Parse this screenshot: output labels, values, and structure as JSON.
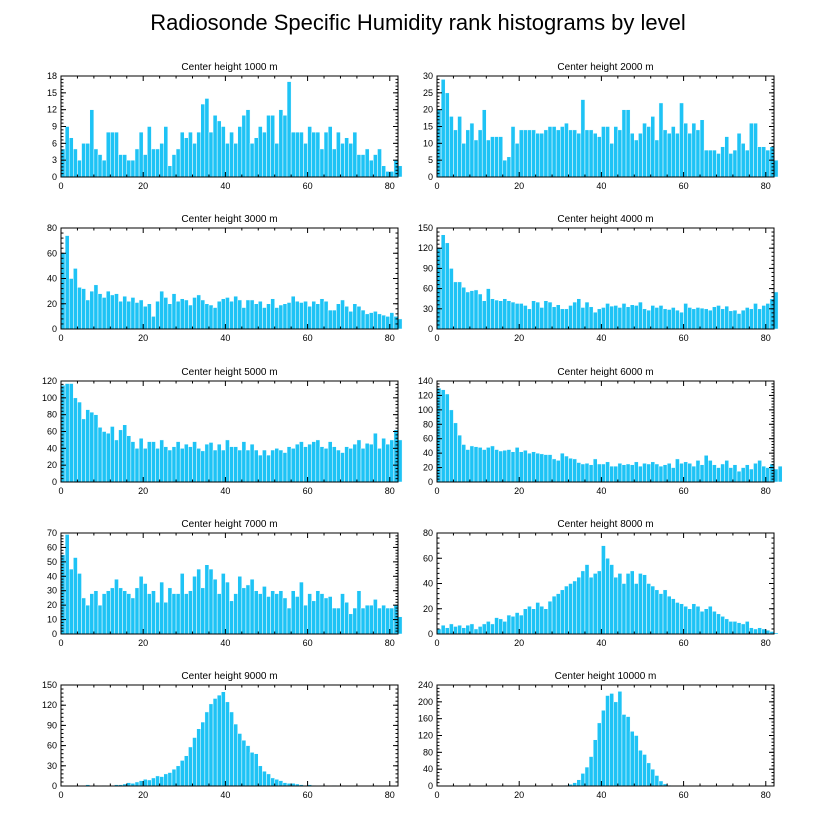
{
  "title": "Radiosonde Specific Humidity rank histograms by level",
  "colors": {
    "bar": "#1ec3f5",
    "axis": "#000000",
    "background": "#ffffff"
  },
  "chart_data": [
    {
      "type": "bar",
      "title": "Center height 1000 m",
      "xlim": [
        0,
        82
      ],
      "ylim": [
        0,
        18
      ],
      "xticks": [
        0,
        20,
        40,
        60,
        80
      ],
      "yticks": [
        0,
        3,
        6,
        9,
        12,
        15,
        18
      ],
      "values": [
        5,
        9,
        7,
        5,
        3,
        6,
        6,
        12,
        5,
        4,
        3,
        8,
        8,
        8,
        4,
        4,
        3,
        3,
        5,
        8,
        4,
        9,
        5,
        5,
        6,
        9,
        2,
        4,
        5,
        8,
        7,
        8,
        6,
        8,
        13,
        14,
        8,
        11,
        10,
        9,
        6,
        8,
        6,
        9,
        11,
        12,
        6,
        7,
        9,
        8,
        11,
        11,
        6,
        12,
        11,
        17,
        8,
        8,
        8,
        6,
        9,
        8,
        8,
        5,
        8,
        9,
        5,
        8,
        6,
        7,
        6,
        8,
        4,
        4,
        5,
        3,
        4,
        5,
        2,
        1,
        1,
        3,
        2
      ]
    },
    {
      "type": "bar",
      "title": "Center height 2000 m",
      "xlim": [
        0,
        82
      ],
      "ylim": [
        0,
        30
      ],
      "xticks": [
        0,
        20,
        40,
        60,
        80
      ],
      "yticks": [
        0,
        5,
        10,
        15,
        20,
        25,
        30
      ],
      "values": [
        20,
        29,
        25,
        18,
        14,
        18,
        10,
        14,
        16,
        11,
        14,
        20,
        11,
        12,
        12,
        12,
        5,
        6,
        15,
        10,
        14,
        14,
        14,
        14,
        13,
        13,
        14,
        15,
        15,
        14,
        15,
        16,
        14,
        14,
        13,
        23,
        14,
        14,
        13,
        12,
        15,
        15,
        10,
        15,
        14,
        20,
        20,
        13,
        11,
        13,
        16,
        15,
        18,
        11,
        22,
        14,
        13,
        15,
        13,
        22,
        16,
        13,
        16,
        14,
        17,
        8,
        8,
        8,
        7,
        9,
        12,
        7,
        8,
        13,
        10,
        8,
        16,
        16,
        9,
        9,
        8,
        9,
        5
      ]
    },
    {
      "type": "bar",
      "title": "Center height 3000 m",
      "xlim": [
        0,
        82
      ],
      "ylim": [
        0,
        80
      ],
      "xticks": [
        0,
        20,
        40,
        60,
        80
      ],
      "yticks": [
        0,
        20,
        40,
        60,
        80
      ],
      "values": [
        60,
        74,
        40,
        48,
        33,
        32,
        23,
        30,
        35,
        28,
        25,
        30,
        27,
        28,
        22,
        26,
        22,
        25,
        21,
        23,
        18,
        20,
        10,
        22,
        30,
        25,
        20,
        28,
        22,
        24,
        23,
        19,
        25,
        27,
        23,
        20,
        19,
        17,
        22,
        24,
        25,
        22,
        26,
        23,
        17,
        23,
        23,
        20,
        22,
        17,
        20,
        24,
        17,
        19,
        20,
        21,
        26,
        22,
        21,
        22,
        18,
        22,
        20,
        24,
        22,
        15,
        15,
        20,
        23,
        18,
        14,
        20,
        18,
        15,
        12,
        13,
        14,
        12,
        11,
        10,
        13,
        10,
        8
      ]
    },
    {
      "type": "bar",
      "title": "Center height 4000 m",
      "xlim": [
        0,
        82
      ],
      "ylim": [
        0,
        150
      ],
      "xticks": [
        0,
        20,
        40,
        60,
        80
      ],
      "yticks": [
        0,
        30,
        60,
        90,
        120,
        150
      ],
      "values": [
        120,
        140,
        128,
        90,
        70,
        70,
        62,
        55,
        57,
        58,
        52,
        42,
        60,
        45,
        43,
        42,
        45,
        42,
        40,
        38,
        38,
        35,
        30,
        42,
        40,
        32,
        42,
        40,
        33,
        36,
        30,
        30,
        35,
        40,
        45,
        32,
        40,
        33,
        25,
        30,
        32,
        38,
        34,
        35,
        32,
        38,
        33,
        36,
        35,
        40,
        30,
        28,
        35,
        32,
        35,
        30,
        29,
        32,
        28,
        25,
        38,
        32,
        30,
        32,
        31,
        30,
        28,
        33,
        35,
        30,
        34,
        27,
        28,
        23,
        28,
        32,
        30,
        38,
        30,
        35,
        38,
        45,
        55
      ]
    },
    {
      "type": "bar",
      "title": "Center height 5000 m",
      "xlim": [
        0,
        82
      ],
      "ylim": [
        0,
        120
      ],
      "xticks": [
        0,
        20,
        40,
        60,
        80
      ],
      "yticks": [
        0,
        20,
        40,
        60,
        80,
        100,
        120
      ],
      "values": [
        115,
        117,
        117,
        100,
        95,
        75,
        86,
        83,
        80,
        65,
        60,
        58,
        66,
        50,
        62,
        68,
        55,
        48,
        40,
        52,
        40,
        48,
        48,
        40,
        50,
        42,
        38,
        42,
        48,
        40,
        45,
        42,
        48,
        40,
        37,
        45,
        47,
        38,
        45,
        38,
        50,
        42,
        42,
        38,
        48,
        38,
        45,
        38,
        32,
        38,
        32,
        38,
        40,
        38,
        35,
        42,
        40,
        45,
        48,
        42,
        45,
        48,
        50,
        42,
        40,
        48,
        42,
        38,
        35,
        42,
        40,
        45,
        50,
        40,
        46,
        45,
        58,
        40,
        52,
        45,
        50,
        62,
        50
      ]
    },
    {
      "type": "bar",
      "title": "Center height 6000 m",
      "xlim": [
        0,
        82
      ],
      "ylim": [
        0,
        140
      ],
      "xticks": [
        0,
        20,
        40,
        60,
        80
      ],
      "yticks": [
        0,
        20,
        40,
        60,
        80,
        100,
        120,
        140
      ],
      "values": [
        130,
        128,
        122,
        100,
        82,
        65,
        52,
        45,
        50,
        49,
        48,
        45,
        48,
        50,
        45,
        43,
        44,
        45,
        42,
        48,
        42,
        44,
        40,
        42,
        40,
        39,
        38,
        38,
        32,
        30,
        40,
        36,
        33,
        32,
        27,
        25,
        26,
        24,
        32,
        25,
        25,
        28,
        22,
        22,
        26,
        24,
        25,
        24,
        28,
        22,
        26,
        25,
        28,
        25,
        22,
        24,
        26,
        20,
        32,
        26,
        28,
        26,
        22,
        30,
        24,
        37,
        30,
        24,
        20,
        25,
        30,
        20,
        24,
        15,
        20,
        24,
        18,
        26,
        30,
        22,
        20,
        25,
        18,
        22
      ]
    },
    {
      "type": "bar",
      "title": "Center height 7000 m",
      "xlim": [
        0,
        82
      ],
      "ylim": [
        0,
        70
      ],
      "xticks": [
        0,
        20,
        40,
        60,
        80
      ],
      "yticks": [
        0,
        10,
        20,
        30,
        40,
        50,
        60,
        70
      ],
      "values": [
        55,
        69,
        45,
        53,
        42,
        25,
        20,
        28,
        30,
        20,
        28,
        30,
        32,
        38,
        32,
        30,
        28,
        25,
        32,
        40,
        35,
        28,
        30,
        22,
        36,
        22,
        32,
        28,
        28,
        42,
        28,
        30,
        40,
        45,
        32,
        48,
        45,
        38,
        28,
        42,
        36,
        23,
        28,
        40,
        32,
        34,
        38,
        30,
        28,
        33,
        26,
        30,
        28,
        30,
        25,
        18,
        30,
        26,
        36,
        20,
        28,
        23,
        30,
        28,
        25,
        26,
        18,
        18,
        28,
        22,
        14,
        18,
        30,
        18,
        20,
        20,
        24,
        18,
        20,
        18,
        18,
        20,
        12
      ]
    },
    {
      "type": "bar",
      "title": "Center height 8000 m",
      "xlim": [
        0,
        82
      ],
      "ylim": [
        0,
        80
      ],
      "xticks": [
        0,
        20,
        40,
        60,
        80
      ],
      "yticks": [
        0,
        20,
        40,
        60,
        80
      ],
      "values": [
        4,
        7,
        5,
        8,
        6,
        7,
        5,
        7,
        8,
        4,
        6,
        8,
        10,
        8,
        13,
        12,
        10,
        15,
        14,
        17,
        15,
        20,
        22,
        20,
        25,
        22,
        20,
        26,
        30,
        32,
        35,
        38,
        40,
        42,
        45,
        50,
        55,
        45,
        48,
        50,
        70,
        60,
        55,
        45,
        48,
        40,
        48,
        50,
        40,
        48,
        47,
        40,
        38,
        35,
        32,
        35,
        30,
        28,
        25,
        24,
        22,
        20,
        24,
        22,
        18,
        20,
        22,
        18,
        16,
        14,
        12,
        10,
        10,
        9,
        8,
        10,
        5,
        4,
        5,
        4,
        3,
        2,
        1
      ]
    },
    {
      "type": "bar",
      "title": "Center height 9000 m",
      "xlim": [
        0,
        82
      ],
      "ylim": [
        0,
        150
      ],
      "xticks": [
        0,
        20,
        40,
        60,
        80
      ],
      "yticks": [
        0,
        30,
        60,
        90,
        120,
        150
      ],
      "values": [
        0,
        0,
        0,
        0,
        0,
        0,
        2,
        0,
        1,
        0,
        1,
        0,
        0,
        2,
        2,
        3,
        5,
        4,
        6,
        8,
        10,
        9,
        12,
        15,
        14,
        18,
        20,
        25,
        30,
        38,
        45,
        58,
        72,
        85,
        95,
        110,
        122,
        130,
        135,
        140,
        125,
        110,
        92,
        78,
        68,
        60,
        50,
        48,
        30,
        22,
        18,
        12,
        10,
        8,
        5,
        4,
        4,
        3,
        2,
        1,
        2,
        1,
        0,
        1,
        0,
        0,
        1,
        0,
        0,
        0,
        0,
        0,
        0,
        0,
        0,
        0,
        0,
        0,
        0,
        0,
        0,
        0,
        0
      ]
    },
    {
      "type": "bar",
      "title": "Center height 10000 m",
      "xlim": [
        0,
        82
      ],
      "ylim": [
        0,
        240
      ],
      "xticks": [
        0,
        20,
        40,
        60,
        80
      ],
      "yticks": [
        0,
        40,
        80,
        120,
        160,
        200,
        240
      ],
      "values": [
        0,
        0,
        0,
        0,
        0,
        0,
        0,
        0,
        0,
        0,
        0,
        0,
        0,
        0,
        0,
        0,
        0,
        0,
        0,
        0,
        0,
        0,
        0,
        0,
        0,
        0,
        0,
        0,
        0,
        0,
        0,
        2,
        4,
        8,
        15,
        30,
        45,
        70,
        110,
        150,
        180,
        215,
        220,
        200,
        225,
        170,
        165,
        130,
        120,
        85,
        75,
        55,
        40,
        25,
        12,
        5,
        2,
        0,
        0,
        0,
        0,
        0,
        0,
        0,
        0,
        0,
        0,
        0,
        0,
        0,
        0,
        0,
        0,
        0,
        0,
        0,
        0,
        0,
        0,
        0,
        0,
        0,
        0
      ]
    }
  ]
}
